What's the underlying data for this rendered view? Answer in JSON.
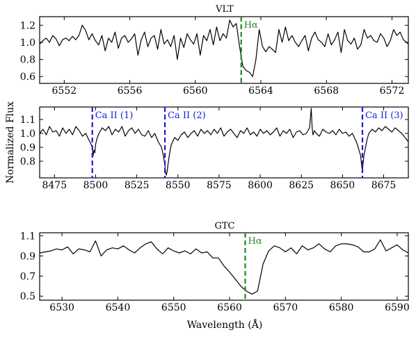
{
  "figure": {
    "ylabel": "Normalized Flux",
    "xlabel": "Wavelength (Å)"
  },
  "chart_data": [
    {
      "type": "line",
      "title": "VLT",
      "xlim": [
        6550.5,
        6573
      ],
      "ylim": [
        0.52,
        1.3
      ],
      "xticks": [
        6552,
        6556,
        6560,
        6564,
        6568,
        6572
      ],
      "yticks": [
        0.6,
        0.8,
        1.0,
        1.2
      ],
      "ytick_labels": [
        "0.6",
        "0.8",
        "1.0",
        "1.2"
      ],
      "series": [
        {
          "color": "#000000",
          "x": [
            6550.5,
            6550.7,
            6550.9,
            6551.1,
            6551.3,
            6551.5,
            6551.7,
            6551.9,
            6552.1,
            6552.3,
            6552.5,
            6552.7,
            6552.9,
            6553.1,
            6553.3,
            6553.5,
            6553.7,
            6553.9,
            6554.1,
            6554.3,
            6554.5,
            6554.7,
            6554.9,
            6555.1,
            6555.3,
            6555.5,
            6555.7,
            6555.9,
            6556.1,
            6556.3,
            6556.5,
            6556.7,
            6556.9,
            6557.1,
            6557.3,
            6557.5,
            6557.7,
            6557.9,
            6558.1,
            6558.3,
            6558.5,
            6558.7,
            6558.9,
            6559.1,
            6559.3,
            6559.5,
            6559.7,
            6559.9,
            6560.1,
            6560.3,
            6560.5,
            6560.7,
            6560.9,
            6561.1,
            6561.3,
            6561.5,
            6561.7,
            6561.9,
            6562.1,
            6562.3,
            6562.5,
            6562.7,
            6562.9,
            6563.1,
            6563.3,
            6563.5,
            6563.7,
            6563.9,
            6564.1,
            6564.3,
            6564.5,
            6564.7,
            6564.9,
            6565.1,
            6565.3,
            6565.5,
            6565.7,
            6565.9,
            6566.1,
            6566.3,
            6566.5,
            6566.7,
            6566.9,
            6567.1,
            6567.3,
            6567.5,
            6567.7,
            6567.9,
            6568.1,
            6568.3,
            6568.5,
            6568.7,
            6568.9,
            6569.1,
            6569.3,
            6569.5,
            6569.7,
            6569.9,
            6570.1,
            6570.3,
            6570.5,
            6570.7,
            6570.9,
            6571.1,
            6571.3,
            6571.5,
            6571.7,
            6571.9,
            6572.1,
            6572.3,
            6572.5,
            6572.7,
            6573.0
          ],
          "y": [
            0.98,
            1.02,
            1.05,
            1.0,
            1.08,
            1.04,
            0.96,
            1.03,
            1.05,
            1.02,
            1.07,
            1.03,
            1.08,
            1.2,
            1.14,
            1.03,
            1.1,
            1.02,
            0.97,
            1.08,
            0.9,
            1.05,
            1.0,
            1.12,
            0.93,
            1.05,
            1.08,
            1.0,
            1.04,
            1.1,
            0.85,
            1.03,
            1.12,
            0.95,
            1.05,
            1.08,
            0.92,
            1.15,
            0.98,
            1.03,
            0.95,
            1.08,
            0.8,
            1.05,
            0.94,
            1.1,
            1.03,
            0.98,
            1.1,
            0.85,
            1.08,
            1.02,
            1.15,
            0.97,
            1.18,
            1.02,
            1.1,
            1.05,
            1.26,
            1.18,
            1.22,
            0.95,
            0.72,
            0.67,
            0.65,
            0.6,
            0.8,
            1.15,
            0.95,
            0.89,
            0.95,
            0.92,
            0.88,
            1.15,
            1.0,
            1.18,
            1.02,
            1.08,
            1.0,
            0.95,
            1.02,
            1.08,
            0.9,
            1.05,
            1.12,
            1.03,
            1.0,
            0.95,
            1.1,
            0.97,
            1.03,
            1.12,
            0.88,
            1.15,
            1.02,
            0.98,
            1.05,
            0.92,
            0.97,
            1.15,
            1.05,
            1.08,
            1.02,
            1.0,
            1.1,
            1.05,
            0.95,
            1.02,
            1.15,
            1.08,
            1.12,
            1.03,
            0.98
          ]
        }
      ],
      "vlines": [
        {
          "x": 6562.8,
          "color": "#1f8a1f",
          "label": "Hα"
        }
      ]
    },
    {
      "type": "line",
      "xlim": [
        8466,
        8690
      ],
      "ylim": [
        0.68,
        1.19
      ],
      "xticks": [
        8475,
        8500,
        8525,
        8550,
        8575,
        8600,
        8625,
        8650,
        8675
      ],
      "yticks": [
        0.8,
        0.9,
        1.0,
        1.1
      ],
      "ytick_labels": [
        "0.8",
        "0.9",
        "1.0",
        "1.1"
      ],
      "series": [
        {
          "color": "#000000",
          "x": [
            8466,
            8468,
            8470,
            8472,
            8474,
            8476,
            8478,
            8480,
            8482,
            8484,
            8486,
            8488,
            8490,
            8492,
            8494,
            8496,
            8497,
            8498,
            8498.5,
            8499,
            8499.5,
            8500,
            8501,
            8502,
            8504,
            8506,
            8508,
            8510,
            8512,
            8514,
            8516,
            8518,
            8520,
            8522,
            8524,
            8526,
            8528,
            8530,
            8532,
            8534,
            8536,
            8538,
            8540,
            8541,
            8542,
            8542.5,
            8543,
            8543.5,
            8544,
            8545,
            8546,
            8548,
            8550,
            8552,
            8554,
            8556,
            8558,
            8560,
            8562,
            8564,
            8566,
            8568,
            8570,
            8572,
            8574,
            8576,
            8578,
            8580,
            8582,
            8584,
            8586,
            8588,
            8590,
            8592,
            8594,
            8596,
            8598,
            8600,
            8602,
            8604,
            8606,
            8608,
            8610,
            8612,
            8614,
            8616,
            8618,
            8620,
            8622,
            8624,
            8626,
            8628,
            8630,
            8631,
            8631.5,
            8632,
            8633,
            8634,
            8636,
            8638,
            8640,
            8642,
            8644,
            8646,
            8648,
            8650,
            8652,
            8654,
            8656,
            8658,
            8659,
            8660,
            8661,
            8661.5,
            8662,
            8662.5,
            8663,
            8664,
            8665,
            8666,
            8668,
            8670,
            8672,
            8674,
            8676,
            8678,
            8680,
            8682,
            8684,
            8686,
            8688,
            8690
          ],
          "y": [
            1.0,
            1.03,
            0.99,
            1.05,
            1.01,
            1.02,
            0.98,
            1.04,
            1.0,
            1.03,
            0.99,
            1.05,
            1.02,
            0.98,
            1.0,
            0.95,
            0.93,
            0.9,
            0.84,
            0.88,
            0.86,
            0.92,
            0.97,
            1.0,
            1.04,
            1.02,
            1.05,
            0.99,
            1.03,
            1.01,
            1.05,
            0.98,
            1.02,
            1.04,
            1.0,
            1.03,
            0.99,
            0.98,
            1.02,
            0.97,
            1.0,
            0.94,
            0.9,
            0.85,
            0.78,
            0.72,
            0.7,
            0.73,
            0.78,
            0.86,
            0.92,
            0.97,
            0.95,
            0.99,
            1.01,
            0.97,
            1.0,
            1.02,
            0.98,
            1.03,
            1.0,
            1.02,
            0.99,
            1.03,
            1.0,
            1.04,
            0.98,
            1.01,
            1.03,
            1.0,
            0.97,
            1.02,
            1.0,
            1.04,
            0.99,
            1.01,
            0.98,
            1.03,
            1.0,
            1.02,
            0.99,
            1.01,
            1.04,
            0.98,
            1.02,
            1.0,
            1.03,
            0.97,
            1.01,
            1.02,
            0.99,
            1.0,
            1.04,
            1.18,
            1.05,
            0.99,
            1.02,
            1.0,
            0.98,
            1.03,
            1.01,
            1.0,
            1.02,
            0.99,
            1.03,
            1.0,
            1.01,
            0.98,
            1.0,
            0.95,
            0.92,
            0.88,
            0.84,
            0.78,
            0.74,
            0.78,
            0.84,
            0.9,
            0.96,
            1.0,
            1.03,
            1.01,
            1.04,
            1.02,
            1.05,
            1.03,
            1.01,
            1.04,
            1.02,
            1.0,
            0.97,
            0.94
          ]
        }
      ],
      "vlines": [
        {
          "x": 8498.0,
          "color": "#1b1bd6",
          "label": "Ca II (1)"
        },
        {
          "x": 8542.1,
          "color": "#1b1bd6",
          "label": "Ca II (2)"
        },
        {
          "x": 8662.1,
          "color": "#1b1bd6",
          "label": "Ca II (3)"
        }
      ]
    },
    {
      "type": "line",
      "title": "GTC",
      "xlim": [
        6526,
        6592
      ],
      "ylim": [
        0.46,
        1.13
      ],
      "xticks": [
        6530,
        6540,
        6550,
        6560,
        6570,
        6580,
        6590
      ],
      "yticks": [
        0.5,
        0.7,
        0.9,
        1.1
      ],
      "ytick_labels": [
        "0.5",
        "0.7",
        "0.9",
        "1.1"
      ],
      "series": [
        {
          "color": "#000000",
          "x": [
            6526,
            6528,
            6529,
            6530,
            6531,
            6532,
            6533,
            6534,
            6535,
            6536,
            6537,
            6538,
            6539,
            6540,
            6541,
            6542,
            6543,
            6544,
            6545,
            6546,
            6547,
            6548,
            6549,
            6550,
            6551,
            6552,
            6553,
            6554,
            6555,
            6556,
            6557,
            6558,
            6559,
            6560,
            6561,
            6562,
            6563,
            6564,
            6565,
            6566,
            6567,
            6568,
            6569,
            6570,
            6571,
            6572,
            6573,
            6574,
            6575,
            6576,
            6577,
            6578,
            6579,
            6580,
            6581,
            6582,
            6583,
            6584,
            6585,
            6586,
            6587,
            6588,
            6589,
            6590,
            6591,
            6592
          ],
          "y": [
            0.93,
            0.95,
            0.97,
            0.96,
            0.99,
            0.92,
            0.97,
            0.96,
            0.94,
            1.05,
            0.9,
            0.96,
            0.98,
            0.97,
            1.0,
            0.96,
            0.93,
            0.98,
            1.02,
            1.04,
            0.97,
            0.92,
            0.98,
            0.95,
            0.93,
            0.95,
            0.92,
            0.97,
            0.93,
            0.94,
            0.88,
            0.88,
            0.8,
            0.74,
            0.67,
            0.6,
            0.55,
            0.52,
            0.55,
            0.82,
            0.95,
            1.0,
            0.98,
            0.94,
            0.98,
            0.92,
            1.0,
            0.96,
            0.98,
            1.02,
            0.97,
            0.94,
            1.0,
            1.02,
            1.02,
            1.01,
            0.99,
            0.94,
            0.94,
            0.97,
            1.06,
            0.95,
            0.98,
            1.01,
            0.96,
            0.93
          ]
        }
      ],
      "vlines": [
        {
          "x": 6562.8,
          "color": "#1f8a1f",
          "label": "Hα"
        }
      ]
    }
  ]
}
